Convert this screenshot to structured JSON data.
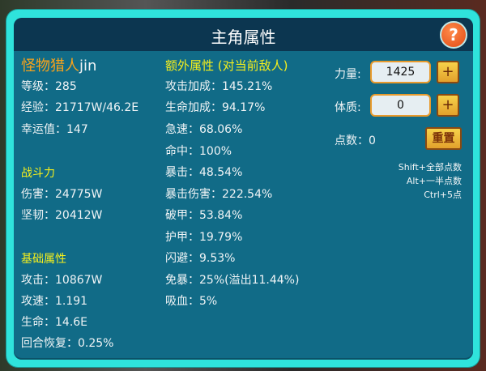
{
  "title": "主角属性",
  "help_label": "?",
  "left": {
    "name": "怪物猎人",
    "name_suffix": "jin",
    "stats": [
      "等级：285",
      "经验：21717W/46.2E",
      "幸运值：147"
    ],
    "combat_title": "战斗力",
    "combat": [
      "伤害：24775W",
      "坚韧：20412W"
    ],
    "base_title": "基础属性",
    "base": [
      "攻击：10867W",
      "攻速：1.191",
      "生命：14.6E",
      "回合恢复：0.25%"
    ]
  },
  "extra": {
    "title": "额外属性 (对当前敌人)",
    "items": [
      "攻击加成：145.21%",
      "生命加成：94.17%",
      "急速：68.06%",
      "命中：100%",
      "暴击：48.54%",
      "暴击伤害：222.54%",
      "破甲：53.84%",
      "护甲：19.79%",
      "闪避：9.53%",
      "免暴：25%(溢出11.44%)",
      "吸血：5%"
    ]
  },
  "points": {
    "strength_label": "力量:",
    "strength_value": "1425",
    "constitution_label": "体质:",
    "constitution_value": "0",
    "plus_label": "+",
    "remaining": "点数：0",
    "reset_label": "重置",
    "hints": [
      "Shift+全部点数",
      "Alt+一半点数",
      "Ctrl+5点"
    ]
  }
}
